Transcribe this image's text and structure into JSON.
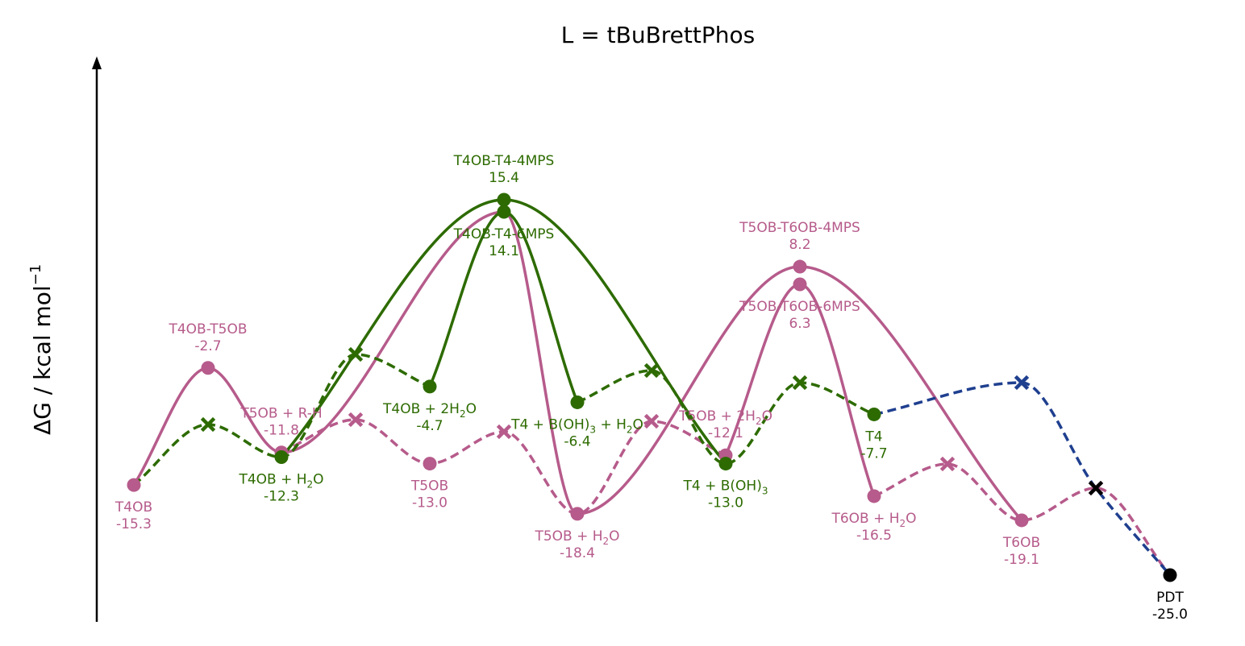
{
  "chart_data": {
    "type": "line",
    "title": "L = tBuBrettPhos",
    "ylabel": "ΔG / kcal mol",
    "ylabel_sup": "−1",
    "colors": {
      "pink": "#b65b8b",
      "green": "#2d6b00",
      "blue": "#1f3f8f",
      "black": "#000000"
    },
    "legend": "none",
    "grid": false,
    "ylim": [
      -25.0,
      15.4
    ],
    "points": [
      {
        "id": "T4OB",
        "energy": -15.3,
        "name": "T4OB",
        "value": "-15.3",
        "color": "pink",
        "marker": "circle",
        "label_pos": "below"
      },
      {
        "id": "TS45",
        "energy": -2.7,
        "name": "T4OB-T5OB",
        "value": "-2.7",
        "color": "pink",
        "marker": "circle",
        "label_pos": "above"
      },
      {
        "id": "T5OB_RH",
        "energy": -11.8,
        "name": "T5OB + R-H",
        "value": "-11.8",
        "color": "pink",
        "marker": "circle",
        "label_pos": "above"
      },
      {
        "id": "T4OB_H2O",
        "energy": -12.3,
        "name": "T4OB + H",
        "name_sub": "2",
        "name_after": "O",
        "value": "-12.3",
        "color": "green",
        "marker": "circle",
        "label_pos": "below"
      },
      {
        "id": "T5OB",
        "energy": -13.0,
        "name": "T5OB",
        "value": "-13.0",
        "color": "pink",
        "marker": "circle",
        "label_pos": "below"
      },
      {
        "id": "T4OB_2H2O",
        "energy": -4.7,
        "name": "T4OB + 2H",
        "name_sub": "2",
        "name_after": "O",
        "value": "-4.7",
        "color": "green",
        "marker": "circle",
        "label_pos": "below"
      },
      {
        "id": "TS4MPS_G",
        "energy": 15.4,
        "name": "T4OB-T4-4MPS",
        "value": "15.4",
        "color": "green",
        "marker": "circle",
        "label_pos": "above"
      },
      {
        "id": "TS6MPS_G",
        "energy": 14.1,
        "name": "T4OB-T4-6MPS",
        "value": "14.1",
        "color": "green",
        "marker": "circle",
        "label_pos": "below"
      },
      {
        "id": "T5OB_H2O",
        "energy": -18.4,
        "name": "T5OB + H",
        "name_sub": "2",
        "name_after": "O",
        "value": "-18.4",
        "color": "pink",
        "marker": "circle",
        "label_pos": "below"
      },
      {
        "id": "T4_BOH3_H2O",
        "energy": -6.4,
        "name": "T4 + B(OH)",
        "name_sub": "3",
        "name_after": " + H",
        "name_sub2": "2",
        "name_after2": "O",
        "value": "-6.4",
        "color": "green",
        "marker": "circle",
        "label_pos": "below"
      },
      {
        "id": "T5OB_2H2O",
        "energy": -12.1,
        "name": "T5OB + 2H",
        "name_sub": "2",
        "name_after": "O",
        "value": "-12.1",
        "color": "pink",
        "marker": "circle",
        "label_pos": "above"
      },
      {
        "id": "T4_BOH3",
        "energy": -13.0,
        "name": "T4 + B(OH)",
        "name_sub": "3",
        "value": "-13.0",
        "color": "green",
        "marker": "circle",
        "label_pos": "below"
      },
      {
        "id": "TS4MPS_P",
        "energy": 8.2,
        "name": "T5OB-T6OB-4MPS",
        "value": "8.2",
        "color": "pink",
        "marker": "circle",
        "label_pos": "above"
      },
      {
        "id": "TS6MPS_P",
        "energy": 6.3,
        "name": "T5OB-T6OB-6MPS",
        "value": "6.3",
        "color": "pink",
        "marker": "circle",
        "label_pos": "below"
      },
      {
        "id": "T4",
        "energy": -7.7,
        "name": "T4",
        "value": "-7.7",
        "color": "green",
        "marker": "circle",
        "label_pos": "below"
      },
      {
        "id": "T6OB_H2O",
        "energy": -16.5,
        "name": "T6OB + H",
        "name_sub": "2",
        "name_after": "O",
        "value": "-16.5",
        "color": "pink",
        "marker": "circle",
        "label_pos": "below"
      },
      {
        "id": "T6OB",
        "energy": -19.1,
        "name": "T6OB",
        "value": "-19.1",
        "color": "pink",
        "marker": "circle",
        "label_pos": "below"
      },
      {
        "id": "PDT",
        "energy": -25.0,
        "name": "PDT",
        "value": "-25.0",
        "color": "black",
        "marker": "circle",
        "label_pos": "below"
      }
    ],
    "series": [
      {
        "color": "pink",
        "dashed": false,
        "points": [
          "T4OB",
          "TS45",
          "T5OB_RH",
          "TS6MPS_G",
          "T5OB_H2O",
          "TS4MPS_P",
          "T6OB"
        ]
      },
      {
        "color": "pink",
        "dashed": false,
        "points": [
          "T5OB_2H2O",
          "TS6MPS_P",
          "T6OB_H2O"
        ]
      },
      {
        "color": "pink",
        "dashed": true,
        "points": [
          "T5OB_RH",
          "x_p1",
          "T5OB",
          "x_p2",
          "T5OB_H2O",
          "x_p3",
          "T5OB_2H2O"
        ]
      },
      {
        "color": "pink",
        "dashed": true,
        "points": [
          "T6OB_H2O",
          "x_p4",
          "T6OB",
          "x_p5",
          "PDT"
        ]
      },
      {
        "color": "green",
        "dashed": false,
        "points": [
          "T4OB_H2O",
          "TS4MPS_G",
          "T4_BOH3"
        ]
      },
      {
        "color": "green",
        "dashed": false,
        "points": [
          "T4OB_2H2O",
          "TS6MPS_G",
          "T4_BOH3_H2O"
        ]
      },
      {
        "color": "green",
        "dashed": true,
        "points": [
          "T4OB",
          "x_g1",
          "T4OB_H2O",
          "x_g2",
          "T4OB_2H2O"
        ]
      },
      {
        "color": "green",
        "dashed": true,
        "points": [
          "T4_BOH3_H2O",
          "x_g3",
          "T4_BOH3",
          "x_g4",
          "T4"
        ]
      },
      {
        "color": "blue",
        "dashed": true,
        "points": [
          "T4",
          "x_b1",
          "x_k1",
          "PDT"
        ]
      }
    ],
    "cross_markers": [
      {
        "id": "x_g1",
        "color": "green"
      },
      {
        "id": "x_g2",
        "color": "green"
      },
      {
        "id": "x_g3",
        "color": "green"
      },
      {
        "id": "x_g4",
        "color": "green"
      },
      {
        "id": "x_p1",
        "color": "pink"
      },
      {
        "id": "x_p2",
        "color": "pink"
      },
      {
        "id": "x_p3",
        "color": "pink"
      },
      {
        "id": "x_p4",
        "color": "pink"
      },
      {
        "id": "x_p5",
        "color": "pink"
      },
      {
        "id": "x_b1",
        "color": "blue"
      },
      {
        "id": "x_k1",
        "color": "black"
      }
    ]
  }
}
